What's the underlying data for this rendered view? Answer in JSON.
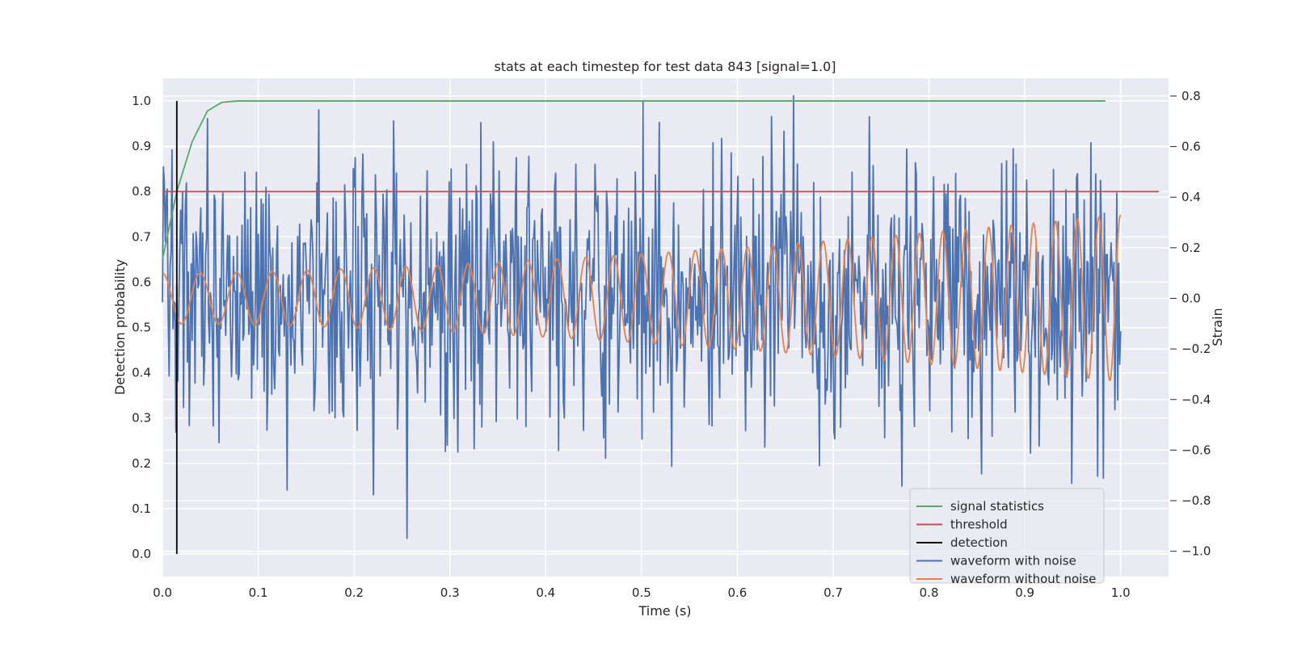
{
  "chart_data": {
    "type": "line",
    "title": "stats at each timestep for test data 843 [signal=1.0]",
    "xlabel": "Time (s)",
    "ylabel_left": "Detection probability",
    "ylabel_right": "Strain",
    "xlim": [
      0.0,
      1.05
    ],
    "ylim_left": [
      -0.05,
      1.05
    ],
    "ylim_right": [
      -1.1,
      0.87
    ],
    "x_ticks": [
      "0.0",
      "0.1",
      "0.2",
      "0.3",
      "0.4",
      "0.5",
      "0.6",
      "0.7",
      "0.8",
      "0.9",
      "1.0"
    ],
    "left_ticks": [
      "0.0",
      "0.1",
      "0.2",
      "0.3",
      "0.4",
      "0.5",
      "0.6",
      "0.7",
      "0.8",
      "0.9",
      "1.0"
    ],
    "right_ticks": [
      "−1.0",
      "−0.8",
      "−0.6",
      "−0.4",
      "−0.2",
      "0.0",
      "0.2",
      "0.4",
      "0.6",
      "0.8"
    ],
    "grid": true,
    "legend_position": "lower-right",
    "series": [
      {
        "name": "signal statistics",
        "axis": "left",
        "color": "#55a868",
        "points": [
          [
            0.0,
            0.65
          ],
          [
            0.015,
            0.8
          ],
          [
            0.031,
            0.91
          ],
          [
            0.047,
            0.978
          ],
          [
            0.062,
            0.997
          ],
          [
            0.078,
            1.0
          ],
          [
            0.1,
            1.0
          ],
          [
            0.3,
            1.0
          ],
          [
            0.6,
            1.0
          ],
          [
            0.9,
            1.0
          ],
          [
            0.984,
            1.0
          ]
        ]
      },
      {
        "name": "threshold",
        "axis": "left",
        "color": "#c44e52",
        "points": [
          [
            0.0,
            0.8
          ],
          [
            1.04,
            0.8
          ]
        ]
      },
      {
        "name": "detection",
        "axis": "left",
        "color": "#000000",
        "points": [
          [
            0.015,
            0.0
          ],
          [
            0.015,
            1.0
          ]
        ]
      },
      {
        "name": "waveform with noise",
        "axis": "right",
        "color": "#4c72b0",
        "description_of_sampling": "noisy strain, approximately Gaussian around 0 with std ~0.28, min about -1.0, max about 0.85",
        "x_range": [
          0.0,
          1.0
        ],
        "sample_count": 1000,
        "std": 0.28,
        "min": -1.0,
        "max": 0.85
      },
      {
        "name": "waveform without noise",
        "axis": "right",
        "color": "#dd8452",
        "x_range": [
          0.0,
          1.0
        ],
        "amplitude_start": 0.1,
        "amplitude_end": 0.33,
        "frequency_start_hz": 25,
        "frequency_end_hz": 45
      }
    ],
    "legend": [
      "signal statistics",
      "threshold",
      "detection",
      "waveform with noise",
      "waveform without noise"
    ]
  }
}
